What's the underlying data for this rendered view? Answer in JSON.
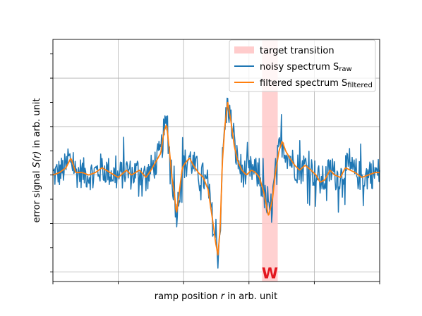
{
  "chart_data": {
    "type": "line",
    "xlabel_pre": "ramp position ",
    "xlabel_var": "r",
    "xlabel_post": " in arb. unit",
    "ylabel_pre": "error signal ",
    "ylabel_var": "S(r)",
    "ylabel_post": " in arb. unit",
    "xlim": [
      0,
      1000
    ],
    "ylim": [
      -2.2,
      2.8
    ],
    "grid": true,
    "legend_position": "top-right",
    "span": {
      "name": "target transition",
      "x": [
        640,
        688
      ],
      "color": "#ffcccc"
    },
    "annotation": {
      "text": "W",
      "x": 664,
      "y": -2.05,
      "color": "#e3161e"
    },
    "series": [
      {
        "name_main": "noisy spectrum S",
        "name_sub": "raw",
        "color": "#1f77b4",
        "values": []
      },
      {
        "name_main": "filtered spectrum S",
        "name_sub": "filtered",
        "color": "#ff7f0e",
        "values": []
      }
    ],
    "filtered_profile": [
      [
        0,
        0.0
      ],
      [
        20,
        0.05
      ],
      [
        40,
        0.15
      ],
      [
        55,
        0.35
      ],
      [
        70,
        0.05
      ],
      [
        90,
        0.05
      ],
      [
        110,
        0.0
      ],
      [
        130,
        0.05
      ],
      [
        150,
        0.15
      ],
      [
        175,
        0.05
      ],
      [
        200,
        -0.05
      ],
      [
        225,
        0.1
      ],
      [
        240,
        0.0
      ],
      [
        265,
        0.1
      ],
      [
        285,
        -0.05
      ],
      [
        300,
        0.1
      ],
      [
        330,
        0.45
      ],
      [
        340,
        0.9
      ],
      [
        348,
        1.05
      ],
      [
        358,
        0.4
      ],
      [
        365,
        -0.1
      ],
      [
        372,
        -0.4
      ],
      [
        378,
        -0.8
      ],
      [
        386,
        -0.4
      ],
      [
        396,
        0.15
      ],
      [
        405,
        0.25
      ],
      [
        418,
        0.35
      ],
      [
        430,
        0.2
      ],
      [
        445,
        0.05
      ],
      [
        460,
        -0.05
      ],
      [
        475,
        -0.3
      ],
      [
        488,
        -0.9
      ],
      [
        498,
        -1.4
      ],
      [
        505,
        -1.65
      ],
      [
        512,
        -1.1
      ],
      [
        518,
        0.2
      ],
      [
        526,
        1.0
      ],
      [
        535,
        1.5
      ],
      [
        545,
        1.1
      ],
      [
        555,
        0.6
      ],
      [
        565,
        0.3
      ],
      [
        578,
        0.1
      ],
      [
        592,
        0.0
      ],
      [
        608,
        0.1
      ],
      [
        620,
        0.05
      ],
      [
        632,
        -0.05
      ],
      [
        645,
        -0.35
      ],
      [
        660,
        -0.85
      ],
      [
        672,
        -0.5
      ],
      [
        680,
        0.0
      ],
      [
        692,
        0.5
      ],
      [
        702,
        0.7
      ],
      [
        712,
        0.5
      ],
      [
        725,
        0.35
      ],
      [
        740,
        0.2
      ],
      [
        755,
        0.1
      ],
      [
        772,
        0.2
      ],
      [
        790,
        0.1
      ],
      [
        805,
        0.0
      ],
      [
        818,
        -0.15
      ],
      [
        832,
        -0.1
      ],
      [
        848,
        0.1
      ],
      [
        862,
        0.0
      ],
      [
        880,
        -0.05
      ],
      [
        895,
        0.15
      ],
      [
        910,
        0.1
      ],
      [
        925,
        0.05
      ],
      [
        945,
        -0.05
      ],
      [
        965,
        0.0
      ],
      [
        985,
        0.05
      ],
      [
        1000,
        0.05
      ]
    ],
    "noise_amplitude": 0.32
  }
}
